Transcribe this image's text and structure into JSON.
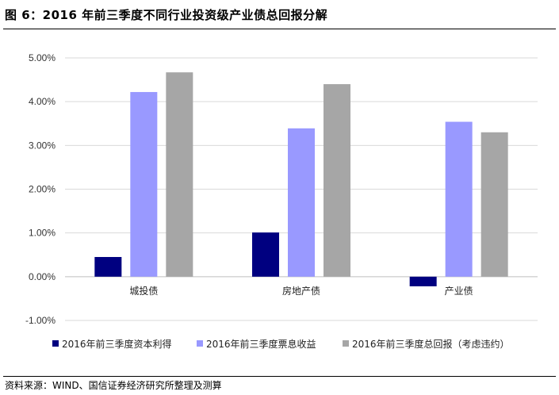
{
  "figure": {
    "title": "图 6：2016 年前三季度不同行业投资级产业债总回报分解",
    "source": "资料来源：WIND、国信证券经济研究所整理及测算"
  },
  "chart_data": {
    "type": "bar",
    "categories": [
      "城投债",
      "房地产债",
      "产业债"
    ],
    "series": [
      {
        "name": "2016年前三季度资本利得",
        "color": "#000080",
        "values": [
          0.45,
          1.01,
          -0.22
        ]
      },
      {
        "name": "2016年前三季度票息收益",
        "color": "#9999ff",
        "values": [
          4.22,
          3.39,
          3.54
        ]
      },
      {
        "name": "2016年前三季度总回报（考虑违约）",
        "color": "#a6a6a6",
        "values": [
          4.67,
          4.4,
          3.3
        ]
      }
    ],
    "yticks": [
      "5.00%",
      "4.00%",
      "3.00%",
      "2.00%",
      "1.00%",
      "0.00%",
      "-1.00%"
    ],
    "ytick_values": [
      5,
      4,
      3,
      2,
      1,
      0,
      -1
    ],
    "ylim": [
      -1,
      5
    ],
    "grid": true,
    "legend": "bottom"
  }
}
